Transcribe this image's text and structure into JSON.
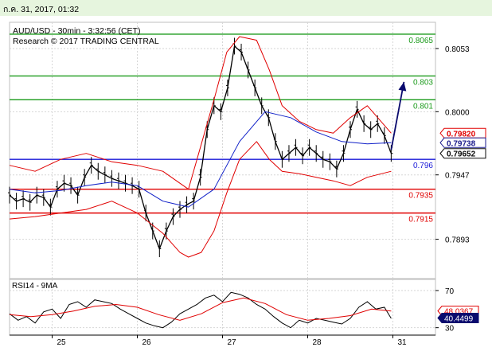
{
  "header": {
    "datetime": "ก.ค. 31, 2017, 01:32"
  },
  "colors": {
    "bg": "#ffffff",
    "header_bg": "#e6f5de",
    "grid": "#d6d6d6",
    "price": "#000000",
    "bollinger": "#e00000",
    "ma": "#1020c8",
    "resistance": "#1a9a1a",
    "pivot": "#1a1ad8",
    "support": "#e00000",
    "arrow": "#0a0a6e",
    "rsi_line": "#000000",
    "rsi_ma": "#e00000"
  },
  "chart_data": [
    {
      "type": "line",
      "title": "AUD/USD - 30min - 3:32:56 (CET)",
      "subtitle": "Research © 2017 TRADING CENTRAL",
      "xlabel": "",
      "ylabel": "",
      "x_ticks": [
        "25",
        "26",
        "27",
        "28",
        "31"
      ],
      "x_tick_pos": [
        0.5,
        1.5,
        2.5,
        3.5,
        4.5
      ],
      "xlim": [
        0,
        5
      ],
      "ylim": [
        0.786,
        0.8075
      ],
      "y_ticks": [
        {
          "value": 0.8053,
          "label": "0.8053"
        },
        {
          "value": 0.8,
          "label": "0.8000"
        },
        {
          "value": 0.7947,
          "label": "0.7947"
        },
        {
          "value": 0.7893,
          "label": "0.7893"
        }
      ],
      "levels": [
        {
          "name": "resistance",
          "value": 0.8065,
          "label": "0.8065"
        },
        {
          "name": "resistance",
          "value": 0.803,
          "label": "0.803"
        },
        {
          "name": "resistance",
          "value": 0.801,
          "label": "0.801"
        },
        {
          "name": "pivot",
          "value": 0.796,
          "label": "0.796"
        },
        {
          "name": "support",
          "value": 0.7935,
          "label": "0.7935"
        },
        {
          "name": "support",
          "value": 0.7915,
          "label": "0.7915"
        }
      ],
      "badges": [
        {
          "value": 0.7982,
          "label": "0.79820",
          "role": "bollinger"
        },
        {
          "value": 0.7974,
          "label": "0.79738",
          "role": "ma"
        },
        {
          "value": 0.7965,
          "label": "0.79652",
          "role": "price"
        }
      ],
      "arrow": {
        "from": [
          4.48,
          0.7968
        ],
        "to": [
          4.63,
          0.8025
        ]
      },
      "series": [
        {
          "role": "price",
          "x": [
            0.0,
            0.08,
            0.16,
            0.24,
            0.32,
            0.4,
            0.48,
            0.56,
            0.64,
            0.72,
            0.8,
            0.88,
            0.96,
            1.04,
            1.12,
            1.2,
            1.28,
            1.36,
            1.44,
            1.52,
            1.6,
            1.68,
            1.76,
            1.84,
            1.92,
            2.0,
            2.08,
            2.16,
            2.24,
            2.32,
            2.4,
            2.48,
            2.56,
            2.64,
            2.72,
            2.8,
            2.88,
            2.96,
            3.04,
            3.12,
            3.2,
            3.28,
            3.36,
            3.44,
            3.52,
            3.6,
            3.68,
            3.76,
            3.84,
            3.92,
            4.0,
            4.08,
            4.16,
            4.24,
            4.32,
            4.4,
            4.48
          ],
          "values": [
            0.793,
            0.7925,
            0.7927,
            0.7924,
            0.793,
            0.7928,
            0.792,
            0.7935,
            0.794,
            0.7938,
            0.793,
            0.7945,
            0.7955,
            0.795,
            0.7947,
            0.7944,
            0.7942,
            0.794,
            0.7938,
            0.7935,
            0.7915,
            0.79,
            0.7885,
            0.79,
            0.7912,
            0.7918,
            0.7922,
            0.7925,
            0.7945,
            0.7985,
            0.8005,
            0.8,
            0.802,
            0.8055,
            0.805,
            0.8035,
            0.802,
            0.8005,
            0.7995,
            0.7975,
            0.796,
            0.7965,
            0.797,
            0.7963,
            0.797,
            0.7965,
            0.796,
            0.7958,
            0.7952,
            0.7965,
            0.7985,
            0.8002,
            0.799,
            0.7985,
            0.799,
            0.798,
            0.7965
          ]
        },
        {
          "role": "ma",
          "x": [
            0.0,
            0.3,
            0.6,
            0.9,
            1.2,
            1.5,
            1.8,
            2.1,
            2.4,
            2.7,
            3.0,
            3.3,
            3.6,
            3.9,
            4.2,
            4.48
          ],
          "values": [
            0.7935,
            0.7932,
            0.7934,
            0.7938,
            0.7941,
            0.7938,
            0.7925,
            0.792,
            0.7935,
            0.7975,
            0.8,
            0.7995,
            0.7983,
            0.7975,
            0.7973,
            0.7974
          ]
        },
        {
          "role": "bollinger",
          "x": [
            0.0,
            0.3,
            0.6,
            0.9,
            1.2,
            1.5,
            1.8,
            2.1,
            2.4,
            2.55,
            2.7,
            2.9,
            3.05,
            3.2,
            3.4,
            3.6,
            3.8,
            4.0,
            4.2,
            4.48
          ],
          "values": [
            0.7955,
            0.795,
            0.796,
            0.7965,
            0.7958,
            0.7955,
            0.795,
            0.7935,
            0.801,
            0.805,
            0.8063,
            0.806,
            0.8035,
            0.8005,
            0.7992,
            0.7985,
            0.7982,
            0.7995,
            0.8005,
            0.7982
          ]
        },
        {
          "role": "bollinger",
          "x": [
            0.0,
            0.3,
            0.6,
            0.9,
            1.2,
            1.5,
            1.8,
            2.0,
            2.1,
            2.25,
            2.4,
            2.55,
            2.7,
            2.9,
            3.05,
            3.2,
            3.4,
            3.6,
            3.8,
            4.0,
            4.2,
            4.48
          ],
          "values": [
            0.791,
            0.7912,
            0.7915,
            0.7918,
            0.7925,
            0.7915,
            0.7898,
            0.7882,
            0.7878,
            0.7882,
            0.79,
            0.7932,
            0.796,
            0.7975,
            0.796,
            0.795,
            0.7948,
            0.7945,
            0.7942,
            0.7938,
            0.7945,
            0.795
          ]
        }
      ]
    },
    {
      "type": "line",
      "title": "RSI14 - 9MA",
      "xlim": [
        0,
        5
      ],
      "ylim": [
        22,
        82
      ],
      "y_ticks": [
        {
          "value": 70,
          "label": "70"
        },
        {
          "value": 30,
          "label": "30"
        }
      ],
      "badges": [
        {
          "value": 48.0367,
          "label": "48.0367",
          "role": "rsi_ma"
        },
        {
          "value": 40.4499,
          "label": "40.4499",
          "role": "rsi_line"
        }
      ],
      "series": [
        {
          "role": "rsi_line",
          "x": [
            0.0,
            0.1,
            0.2,
            0.3,
            0.4,
            0.5,
            0.6,
            0.7,
            0.8,
            0.9,
            1.0,
            1.1,
            1.2,
            1.3,
            1.4,
            1.5,
            1.6,
            1.7,
            1.8,
            1.9,
            2.0,
            2.1,
            2.2,
            2.3,
            2.4,
            2.5,
            2.6,
            2.7,
            2.8,
            2.9,
            3.0,
            3.1,
            3.2,
            3.3,
            3.4,
            3.5,
            3.6,
            3.7,
            3.8,
            3.9,
            4.0,
            4.1,
            4.2,
            4.3,
            4.4,
            4.48
          ],
          "values": [
            45,
            38,
            42,
            35,
            47,
            50,
            40,
            55,
            58,
            52,
            60,
            58,
            56,
            50,
            45,
            40,
            35,
            32,
            30,
            36,
            45,
            50,
            55,
            62,
            65,
            58,
            68,
            66,
            62,
            55,
            50,
            42,
            35,
            30,
            38,
            35,
            40,
            38,
            36,
            34,
            40,
            52,
            58,
            50,
            52,
            40
          ]
        },
        {
          "role": "rsi_ma",
          "x": [
            0.0,
            0.25,
            0.5,
            0.75,
            1.0,
            1.25,
            1.5,
            1.75,
            2.0,
            2.25,
            2.5,
            2.75,
            3.0,
            3.25,
            3.5,
            3.75,
            4.0,
            4.25,
            4.48
          ],
          "values": [
            44,
            42,
            44,
            48,
            53,
            55,
            52,
            44,
            38,
            45,
            57,
            62,
            56,
            44,
            38,
            40,
            43,
            50,
            48
          ]
        }
      ]
    }
  ],
  "x_date_labels": [
    "25",
    "26",
    "27",
    "28",
    "31"
  ]
}
